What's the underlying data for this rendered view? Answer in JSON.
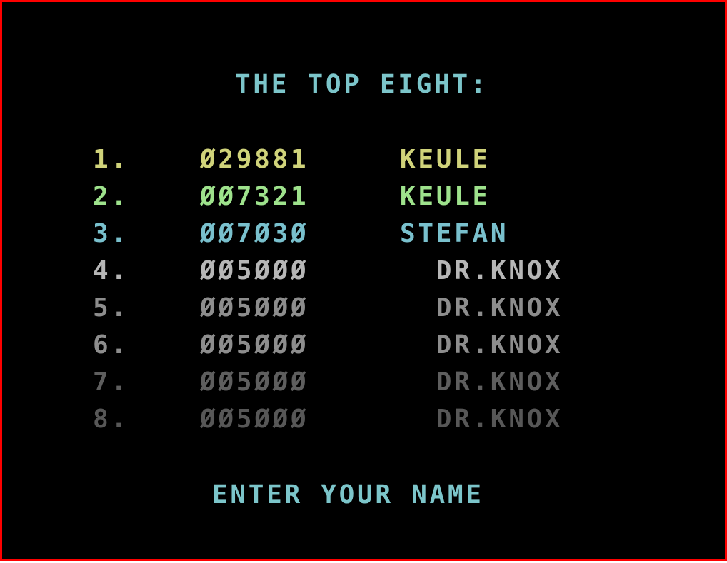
{
  "screen": {
    "background": "#000000",
    "border_color": "#fe0000",
    "title": "THE TOP EIGHT:",
    "title_color": "#7cc5ca",
    "footer": "ENTER YOUR NAME",
    "footer_color": "#7cc5ca",
    "rows": [
      {
        "rank": "1.",
        "score": "029881",
        "name": "KEULE",
        "color": "#d0d37a"
      },
      {
        "rank": "2.",
        "score": "007321",
        "name": "KEULE",
        "color": "#9ee28c"
      },
      {
        "rank": "3.",
        "score": "007030",
        "name": "STEFAN",
        "color": "#79c0cd"
      },
      {
        "rank": "4.",
        "score": "005000",
        "name": "  DR.KNOX",
        "color": "#b6b6b6"
      },
      {
        "rank": "5.",
        "score": "005000",
        "name": "  DR.KNOX",
        "color": "#8d8d8d"
      },
      {
        "rank": "6.",
        "score": "005000",
        "name": "  DR.KNOX",
        "color": "#8d8d8d"
      },
      {
        "rank": "7.",
        "score": "005000",
        "name": "  DR.KNOX",
        "color": "#5e5e5e"
      },
      {
        "rank": "8.",
        "score": "005000",
        "name": "  DR.KNOX",
        "color": "#575757"
      }
    ]
  }
}
